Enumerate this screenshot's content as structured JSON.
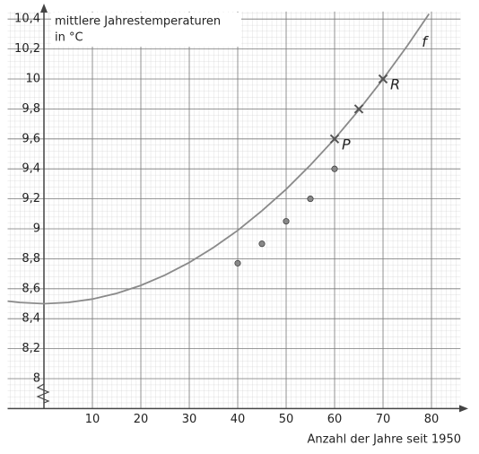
{
  "chart_data": {
    "type": "line",
    "ylabel": "mittlere Jahrestemperaturen",
    "ylabel_unit": "in °C",
    "xlabel": "Anzahl der Jahre seit 1950",
    "xlim": [
      -7.5,
      86
    ],
    "ylim": [
      7.8,
      10.45
    ],
    "xticks": [
      10,
      20,
      30,
      40,
      50,
      60,
      70,
      80
    ],
    "yticks": [
      {
        "value": 8,
        "label": "8"
      },
      {
        "value": 8.2,
        "label": "8,2"
      },
      {
        "value": 8.4,
        "label": "8,4"
      },
      {
        "value": 8.6,
        "label": "8,6"
      },
      {
        "value": 8.8,
        "label": "8,8"
      },
      {
        "value": 9,
        "label": "9"
      },
      {
        "value": 9.2,
        "label": "9,2"
      },
      {
        "value": 9.4,
        "label": "9,4"
      },
      {
        "value": 9.6,
        "label": "9,6"
      },
      {
        "value": 9.8,
        "label": "9,8"
      },
      {
        "value": 10,
        "label": "10"
      },
      {
        "value": 10.2,
        "label": "10,2"
      },
      {
        "value": 10.4,
        "label": "10,4"
      }
    ],
    "grid": true,
    "curve": {
      "name": "f",
      "color": "#8a8a8a",
      "x": [
        -7.5,
        -5,
        0,
        5,
        10,
        15,
        20,
        25,
        30,
        35,
        40,
        45,
        50,
        55,
        60,
        65,
        70,
        75,
        79.5
      ],
      "values": [
        8.517,
        8.508,
        8.5,
        8.508,
        8.531,
        8.569,
        8.622,
        8.691,
        8.775,
        8.875,
        8.989,
        9.12,
        9.264,
        9.425,
        9.6,
        9.792,
        9.999,
        10.221,
        10.434
      ]
    },
    "measured": {
      "color": "#888888",
      "x": [
        40,
        45,
        50,
        55,
        60
      ],
      "values": [
        8.77,
        8.9,
        9.05,
        9.2,
        9.4
      ]
    },
    "crosses": {
      "color": "#555555",
      "x": [
        60,
        65,
        70
      ],
      "values": [
        9.6,
        9.8,
        10
      ],
      "labels": [
        "P",
        null,
        "R"
      ]
    }
  }
}
